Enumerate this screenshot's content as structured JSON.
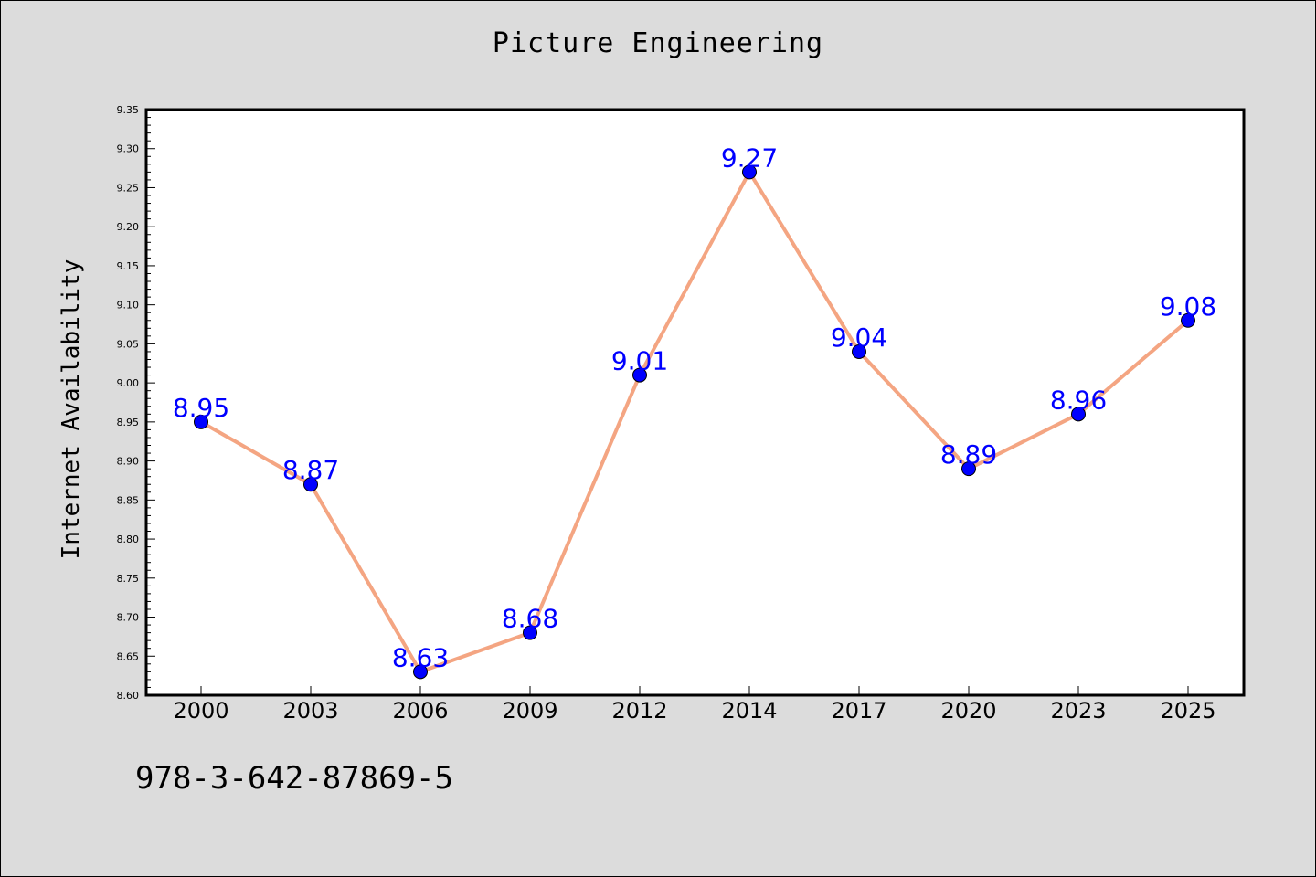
{
  "chart_data": {
    "type": "line",
    "title": "Picture Engineering",
    "xlabel": "",
    "ylabel": "Internet Availability",
    "categories": [
      "2000",
      "2003",
      "2006",
      "2009",
      "2012",
      "2014",
      "2017",
      "2020",
      "2023",
      "2025"
    ],
    "values": [
      8.95,
      8.87,
      8.63,
      8.68,
      9.01,
      9.27,
      9.04,
      8.89,
      8.96,
      9.08
    ],
    "data_labels": [
      "8.95",
      "8.87",
      "8.63",
      "8.68",
      "9.01",
      "9.27",
      "9.04",
      "8.89",
      "8.96",
      "9.08"
    ],
    "ylim": [
      8.6,
      9.35
    ],
    "y_ticks": [
      "8.60",
      "8.65",
      "8.70",
      "8.75",
      "8.80",
      "8.85",
      "8.90",
      "8.95",
      "9.00",
      "9.05",
      "9.10",
      "9.15",
      "9.20",
      "9.25",
      "9.30",
      "9.35"
    ],
    "grid": false,
    "legend": "none",
    "colors": {
      "line": "#f4a582",
      "marker": "#0000ff",
      "label": "#0000ff",
      "background": "#dcdcdc",
      "plot_background": "#ffffff"
    }
  },
  "footer": {
    "isbn": "978-3-642-87869-5"
  }
}
